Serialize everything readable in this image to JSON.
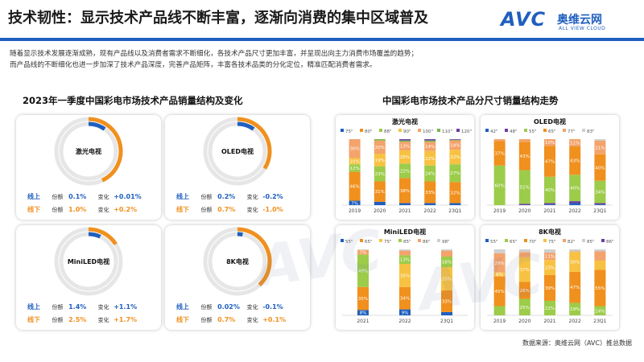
{
  "header": {
    "title": "技术韧性：显示技术产品线不断丰富，逐渐向消费的集中区域普及",
    "logo_text": "AVC",
    "logo_cn": "奥维云网",
    "logo_en": "ALL VIEW CLOUD"
  },
  "intro": {
    "line1": "随着显示技术发展逐渐成熟，现有产品线以及消费者需求不断细化，各技术产品尺寸更加丰富，并呈现出向主力消费市场覆盖的趋势；",
    "line2": "而产品线的不断细化也进一步加深了技术产品深度，完善产品矩阵，丰富各技术品类的分化定位，精准匹配消费者需求。"
  },
  "left_title": "2023年一季度中国彩电市场技术产品销量结构及变化",
  "right_title": "中国彩电市场技术产品分尺寸销量结构走势",
  "labels": {
    "online": "线上",
    "offline": "线下",
    "share": "份额",
    "change": "变化"
  },
  "tech_cards": [
    {
      "name": "激光电视",
      "online_share": "0.1%",
      "online_change": "+0.01%",
      "offline_share": "1.0%",
      "offline_change": "+0.2%",
      "online_frac": 0.1,
      "offline_frac": 0.43
    },
    {
      "name": "OLED电视",
      "online_share": "0.2%",
      "online_change": "-0.2%",
      "offline_share": "0.7%",
      "offline_change": "-1.0%",
      "online_frac": 0.1,
      "offline_frac": 0.34
    },
    {
      "name": "MiniLED电视",
      "online_share": "1.4%",
      "online_change": "+1.1%",
      "offline_share": "2.5%",
      "offline_change": "+1.7%",
      "online_frac": 0.07,
      "offline_frac": 0.16
    },
    {
      "name": "8K电视",
      "online_share": "0.02%",
      "online_change": "-0.1%",
      "offline_share": "0.7%",
      "offline_change": "+0.1%",
      "online_frac": 0.03,
      "offline_frac": 0.38
    }
  ],
  "colors": {
    "brand": "#1f5fbf",
    "offline": "#f0901e",
    "ring": "#e6e6e6"
  },
  "chart_data": [
    {
      "type": "bar",
      "title": "激光电视",
      "categories": [
        "2019",
        "2020",
        "2021",
        "2022",
        "23Q1"
      ],
      "series": [
        {
          "name": "75\"",
          "color": "#1f5fbf",
          "values": [
            7,
            5,
            3,
            3,
            3
          ]
        },
        {
          "name": "80\"",
          "color": "#f0901e",
          "values": [
            46,
            31,
            38,
            33,
            32
          ]
        },
        {
          "name": "88\"",
          "color": "#9ccc4a",
          "values": [
            12,
            23,
            22,
            24,
            27
          ]
        },
        {
          "name": "90\"",
          "color": "#f7c242",
          "values": [
            10,
            19,
            20,
            22,
            22
          ]
        },
        {
          "name": "100\"",
          "color": "#f3a36b",
          "values": [
            30,
            20,
            13,
            14,
            14
          ]
        },
        {
          "name": "110\"",
          "color": "#7ab648",
          "values": [
            0,
            2,
            2,
            2,
            1
          ]
        },
        {
          "name": "120\"",
          "color": "#6a3fa0",
          "values": [
            0,
            0,
            2,
            2,
            1
          ]
        }
      ],
      "labels": [
        {
          "cat": 0,
          "text": "7%"
        },
        {
          "cat": 0,
          "text": "46%"
        },
        {
          "cat": 0,
          "text": "12%"
        },
        {
          "cat": 0,
          "text": "10%"
        },
        {
          "cat": 0,
          "text": "30%"
        },
        {
          "cat": 1,
          "text": "31%"
        },
        {
          "cat": 1,
          "text": "23%"
        },
        {
          "cat": 1,
          "text": "19%"
        },
        {
          "cat": 1,
          "text": "20%"
        },
        {
          "cat": 2,
          "text": "38%"
        },
        {
          "cat": 2,
          "text": "22%"
        },
        {
          "cat": 2,
          "text": "20%"
        },
        {
          "cat": 2,
          "text": "13%"
        },
        {
          "cat": 3,
          "text": "33%"
        },
        {
          "cat": 3,
          "text": "24%"
        },
        {
          "cat": 3,
          "text": "22%"
        },
        {
          "cat": 3,
          "text": "14%"
        },
        {
          "cat": 4,
          "text": "32%"
        },
        {
          "cat": 4,
          "text": "27%"
        },
        {
          "cat": 4,
          "text": "22%"
        },
        {
          "cat": 4,
          "text": "14%"
        }
      ],
      "ylim": [
        0,
        100
      ]
    },
    {
      "type": "bar",
      "title": "OLED电视",
      "categories": [
        "2019",
        "2020",
        "2021",
        "2022",
        "23Q1"
      ],
      "series": [
        {
          "name": "42\"",
          "color": "#1f5fbf",
          "values": [
            0,
            0,
            1,
            3,
            1
          ]
        },
        {
          "name": "48\"",
          "color": "#6a3fa0",
          "values": [
            0,
            2,
            2,
            3,
            2
          ]
        },
        {
          "name": "55\"",
          "color": "#9ccc4a",
          "values": [
            60,
            51,
            40,
            40,
            34
          ]
        },
        {
          "name": "65\"",
          "color": "#f0901e",
          "values": [
            37,
            43,
            47,
            43,
            40
          ]
        },
        {
          "name": "77\"",
          "color": "#f3a36b",
          "values": [
            3,
            4,
            10,
            11,
            21
          ]
        },
        {
          "name": "83\"",
          "color": "#cfcfcf",
          "values": [
            0,
            0,
            0,
            0,
            2
          ]
        }
      ],
      "labels": [
        {
          "cat": 0,
          "text": "60%"
        },
        {
          "cat": 0,
          "text": "37%"
        },
        {
          "cat": 1,
          "text": "51%"
        },
        {
          "cat": 1,
          "text": "43%"
        },
        {
          "cat": 2,
          "text": "40%"
        },
        {
          "cat": 2,
          "text": "47%"
        },
        {
          "cat": 2,
          "text": "10%"
        },
        {
          "cat": 3,
          "text": "40%"
        },
        {
          "cat": 3,
          "text": "43%"
        },
        {
          "cat": 3,
          "text": "11%"
        },
        {
          "cat": 4,
          "text": "34%"
        },
        {
          "cat": 4,
          "text": "40%"
        },
        {
          "cat": 4,
          "text": "21%"
        }
      ],
      "ylim": [
        0,
        100
      ]
    },
    {
      "type": "bar",
      "title": "MiniLED电视",
      "categories": [
        "2021",
        "2022",
        "23Q1"
      ],
      "series": [
        {
          "name": "55\"",
          "color": "#1f5fbf",
          "values": [
            8,
            9,
            5
          ]
        },
        {
          "name": "65\"",
          "color": "#f0901e",
          "values": [
            35,
            34,
            33
          ]
        },
        {
          "name": "75\"",
          "color": "#f7c242",
          "values": [
            0,
            35,
            35
          ]
        },
        {
          "name": "85\"",
          "color": "#9ccc4a",
          "values": [
            49,
            13,
            16
          ]
        },
        {
          "name": "86\"",
          "color": "#f3a36b",
          "values": [
            7,
            7,
            9
          ]
        },
        {
          "name": "98\"",
          "color": "#cfcfcf",
          "values": [
            1,
            2,
            2
          ]
        }
      ],
      "labels": [
        {
          "cat": 0,
          "text": "8%"
        },
        {
          "cat": 0,
          "text": "35%"
        },
        {
          "cat": 0,
          "text": "49%"
        },
        {
          "cat": 0,
          "text": "7%"
        },
        {
          "cat": 1,
          "text": "9%"
        },
        {
          "cat": 1,
          "text": "34%"
        },
        {
          "cat": 1,
          "text": "35%"
        },
        {
          "cat": 1,
          "text": "13%"
        },
        {
          "cat": 2,
          "text": "33%"
        },
        {
          "cat": 2,
          "text": "35%"
        },
        {
          "cat": 2,
          "text": "16%"
        }
      ],
      "ylim": [
        0,
        100
      ]
    },
    {
      "type": "bar",
      "title": "8K电视",
      "categories": [
        "2019",
        "2020",
        "2021",
        "2022",
        "23Q1"
      ],
      "series": [
        {
          "name": "55\"",
          "color": "#1f5fbf",
          "values": [
            0,
            0,
            0,
            0,
            0
          ]
        },
        {
          "name": "65\"",
          "color": "#9ccc4a",
          "values": [
            14,
            25,
            22,
            19,
            14
          ]
        },
        {
          "name": "70\"",
          "color": "#f0901e",
          "values": [
            45,
            26,
            39,
            47,
            55
          ]
        },
        {
          "name": "75\"",
          "color": "#f7c242",
          "values": [
            6,
            37,
            23,
            30,
            14
          ]
        },
        {
          "name": "82\"",
          "color": "#f3a36b",
          "values": [
            29,
            8,
            11,
            1,
            14
          ]
        },
        {
          "name": "85\"",
          "color": "#cfcfcf",
          "values": [
            6,
            4,
            5,
            3,
            3
          ]
        },
        {
          "name": "86\"",
          "color": "#6a3fa0",
          "values": [
            0,
            0,
            0,
            0,
            0
          ]
        }
      ],
      "labels": [
        {
          "cat": 0,
          "text": "45%"
        },
        {
          "cat": 0,
          "text": "6%"
        },
        {
          "cat": 0,
          "text": "29%"
        },
        {
          "cat": 1,
          "text": "25%"
        },
        {
          "cat": 1,
          "text": "26%"
        },
        {
          "cat": 1,
          "text": "37%"
        },
        {
          "cat": 2,
          "text": "22%"
        },
        {
          "cat": 2,
          "text": "39%"
        },
        {
          "cat": 2,
          "text": "23%"
        },
        {
          "cat": 2,
          "text": "11%"
        },
        {
          "cat": 3,
          "text": "19%"
        },
        {
          "cat": 3,
          "text": "47%"
        },
        {
          "cat": 3,
          "text": "30%"
        },
        {
          "cat": 4,
          "text": "55%"
        },
        {
          "cat": 4,
          "text": "14%"
        }
      ],
      "ylim": [
        0,
        100
      ]
    }
  ],
  "source": "数据来源：奥维云网（AVC）推总数据"
}
